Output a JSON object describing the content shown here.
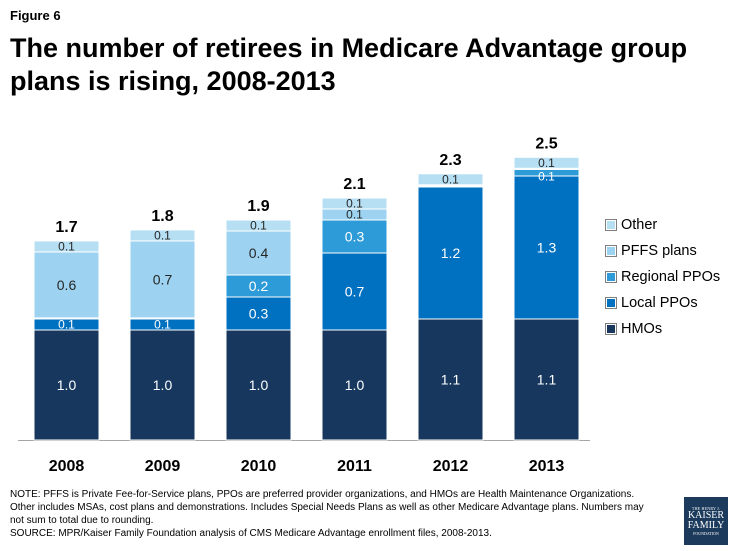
{
  "figure_label": "Figure 6",
  "title": "The number of retirees in Medicare Advantage group plans is rising, 2008-2013",
  "chart_data": {
    "type": "bar",
    "stacked": true,
    "title": "The number of retirees in Medicare Advantage group plans is rising, 2008-2013",
    "categories": [
      "2008",
      "2009",
      "2010",
      "2011",
      "2012",
      "2013"
    ],
    "totals": [
      "1.7",
      "1.8",
      "1.9",
      "2.1",
      "2.3",
      "2.5"
    ],
    "ylim": [
      0,
      2.6
    ],
    "grid": false,
    "legend_position": "right",
    "series": [
      {
        "name": "HMOs",
        "color": "#17375e",
        "values": [
          1.0,
          1.0,
          1.0,
          1.0,
          1.1,
          1.1
        ],
        "labels": [
          "1.0",
          "1.0",
          "1.0",
          "1.0",
          "1.1",
          "1.1"
        ]
      },
      {
        "name": "Local PPOs",
        "color": "#0070c0",
        "values": [
          0.1,
          0.1,
          0.3,
          0.7,
          1.2,
          1.3
        ],
        "labels": [
          "0.1",
          "0.1",
          "0.3",
          "0.7",
          "1.2",
          "1.3"
        ]
      },
      {
        "name": "Regional PPOs",
        "color": "#2e9bd9",
        "values": [
          0.01,
          0.01,
          0.2,
          0.3,
          0.01,
          0.06
        ],
        "labels": [
          "",
          "",
          "0.2",
          "0.3",
          "",
          ""
        ]
      },
      {
        "name": "PFFS plans",
        "color": "#9dd3f0",
        "values": [
          0.6,
          0.7,
          0.4,
          0.1,
          0.01,
          0.01
        ],
        "labels": [
          "0.6",
          "0.7",
          "0.4",
          "0.1",
          "",
          ""
        ]
      },
      {
        "name": "Other",
        "color": "#b7dff3",
        "values": [
          0.1,
          0.1,
          0.1,
          0.1,
          0.1,
          0.1
        ],
        "labels": [
          "0.1",
          "0.1",
          "0.1",
          "0.1",
          "0.1",
          "0.1"
        ]
      }
    ],
    "legend_order": [
      "Other",
      "PFFS plans",
      "Regional PPOs",
      "Local PPOs",
      "HMOs"
    ],
    "extra_labels": [
      {
        "category": "2013",
        "text": "0.1",
        "series": "Regional PPOs"
      }
    ]
  },
  "footnote": {
    "line1": "NOTE:  PFFS is Private Fee-for-Service plans, PPOs are preferred provider organizations, and HMOs are Health Maintenance Organizations.",
    "line2": "Other includes MSAs, cost plans and demonstrations.  Includes Special Needs Plans as well as other Medicare Advantage plans.   Numbers may",
    "line3": "not sum to total due to rounding.",
    "source": "SOURCE:  MPR/Kaiser Family Foundation analysis of CMS Medicare Advantage enrollment files, 2008-2013."
  },
  "logo": {
    "line1": "THE HENRY J.",
    "line2": "KAISER",
    "line3": "FAMILY",
    "line4": "FOUNDATION"
  }
}
